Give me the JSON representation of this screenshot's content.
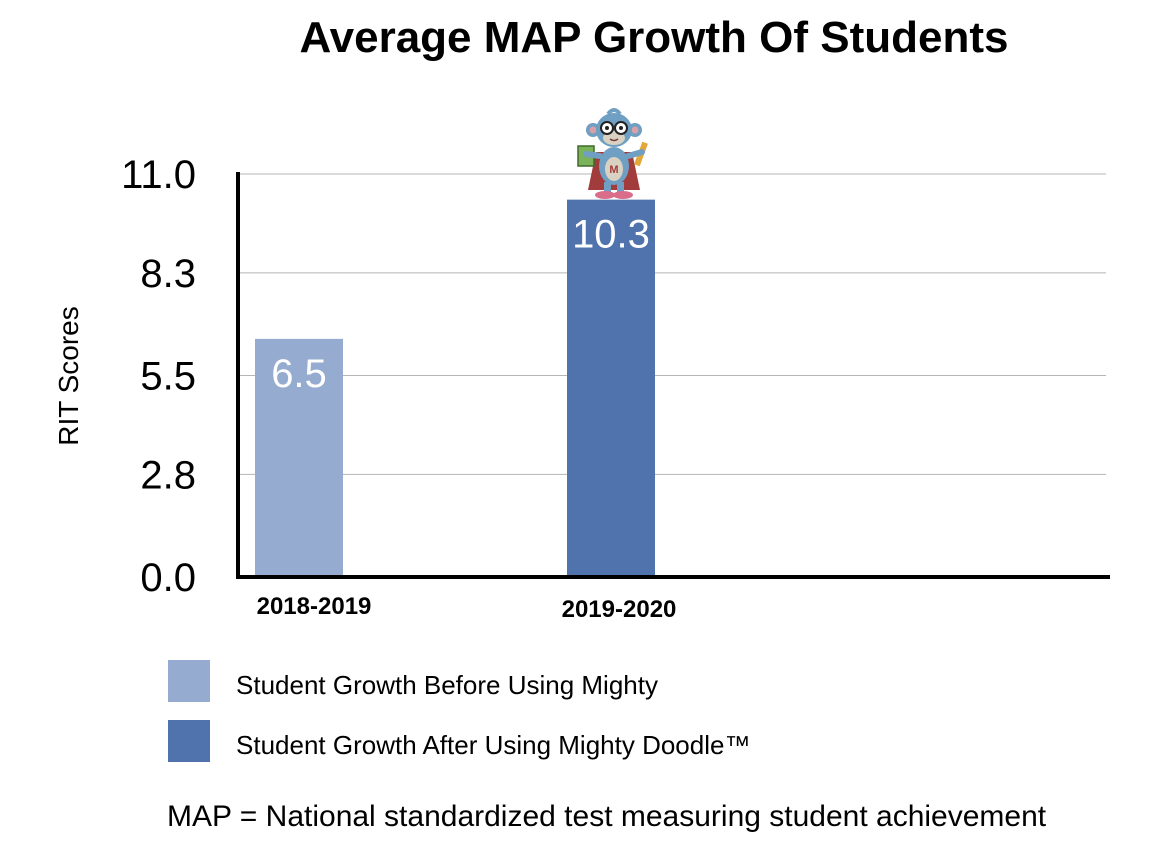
{
  "chart_data": {
    "type": "bar",
    "title": "Average MAP Growth Of Students",
    "xlabel": "",
    "ylabel": "RIT Scores",
    "categories": [
      "2018-2019",
      "2019-2020"
    ],
    "values": [
      6.5,
      10.3
    ],
    "value_labels": [
      "6.5",
      "10.3"
    ],
    "bar_colors": [
      "#95abcf",
      "#5073ae"
    ],
    "ylim": [
      0,
      11.0
    ],
    "yticks": [
      0.0,
      2.8,
      5.5,
      8.3,
      11.0
    ],
    "ytick_labels": [
      "0.0",
      "2.8",
      "5.5",
      "8.3",
      "11.0"
    ],
    "grid": true,
    "legend": [
      {
        "label": "Student Growth Before Using Mighty",
        "color": "#95abcf"
      },
      {
        "label": "Student Growth After Using Mighty Doodle™",
        "color": "#5073ae"
      }
    ],
    "legend_position": "bottom"
  },
  "colors": {
    "gridline": "#b5b5b5",
    "axis": "#000000",
    "mascot_body": "#6f9fc2"
  },
  "mascot": {
    "icon": "monkey-mascot-icon",
    "badge_letter": "M"
  },
  "footnote": "MAP = National standardized test measuring student achievement"
}
